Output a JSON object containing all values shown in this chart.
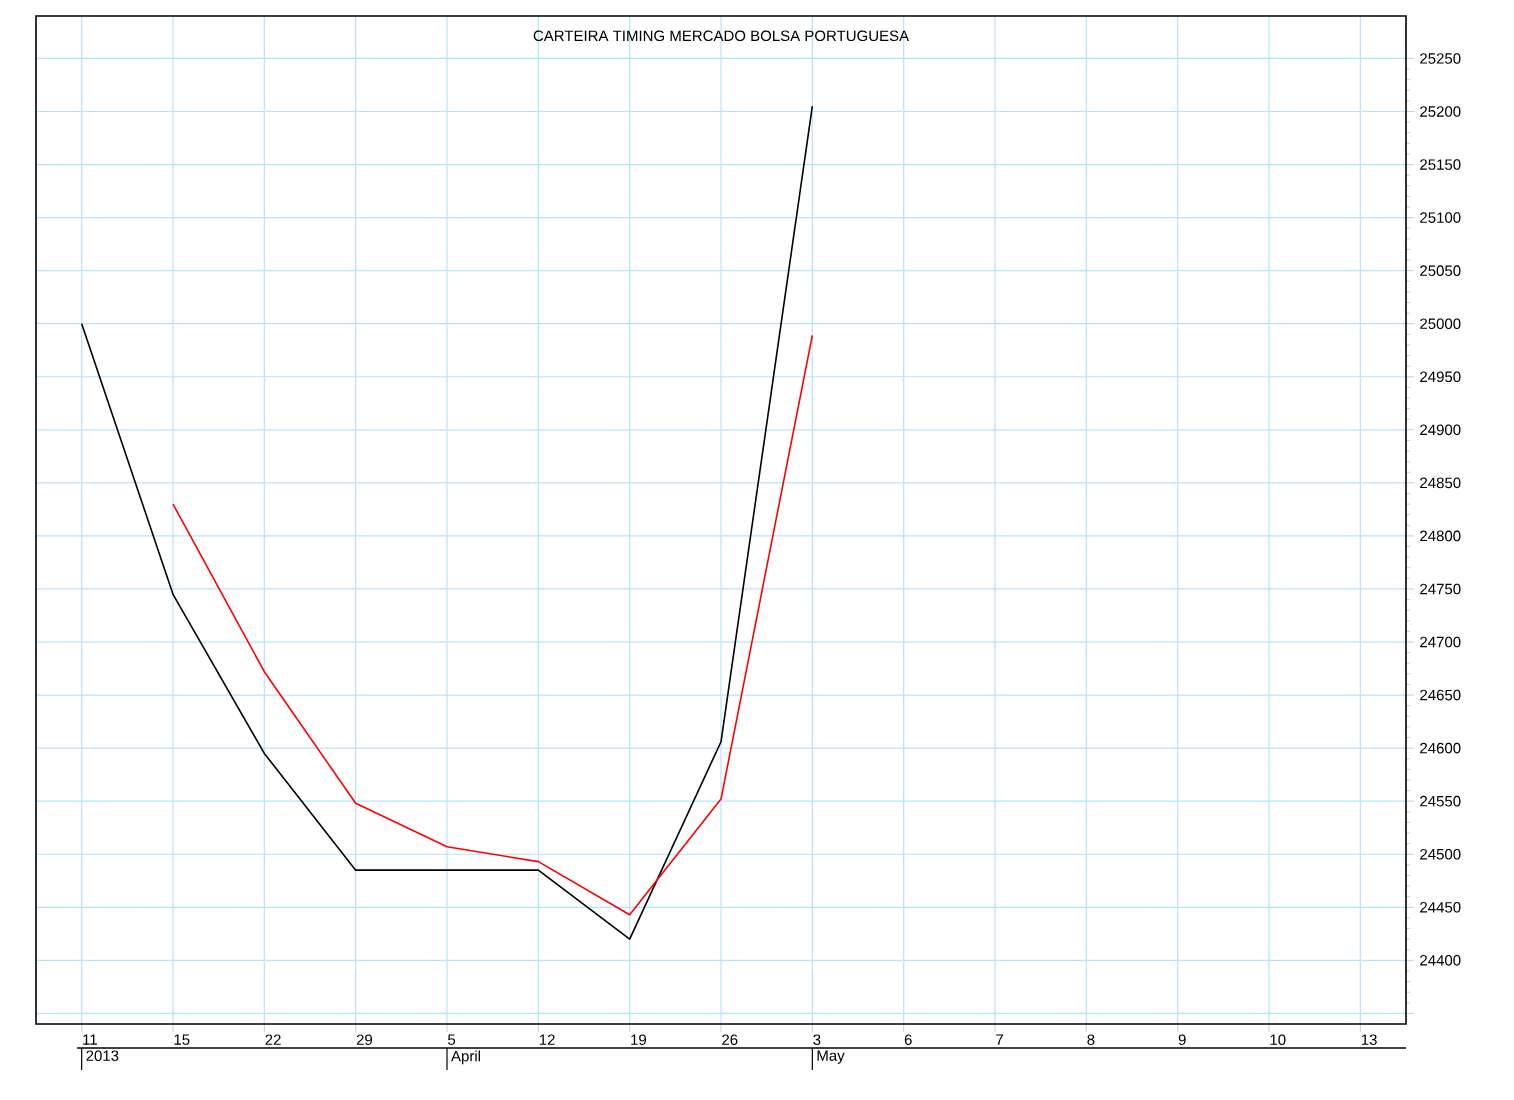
{
  "chart_data": {
    "type": "line",
    "title": "CARTEIRA TIMING MERCADO BOLSA PORTUGUESA",
    "categories": [
      "11",
      "15",
      "22",
      "29",
      "5",
      "12",
      "19",
      "26",
      "3",
      "6",
      "7",
      "8",
      "9",
      "10",
      "13"
    ],
    "series": [
      {
        "color": "#000000",
        "values": [
          25000,
          24745,
          24595,
          24485,
          24485,
          24485,
          24420,
          24606,
          25205,
          null,
          null,
          null,
          null,
          null,
          null
        ]
      },
      {
        "color": "#ff0000",
        "values": [
          null,
          24830,
          24672,
          24548,
          24507,
          24493,
          24443,
          24552,
          24989,
          null,
          null,
          null,
          null,
          null,
          null
        ]
      }
    ],
    "ylim": [
      24340,
      25290
    ],
    "yticks": [
      {
        "value": 24350,
        "label": null
      },
      24400,
      24450,
      24500,
      24550,
      24600,
      24650,
      24700,
      24750,
      24800,
      24850,
      24900,
      24950,
      25000,
      25050,
      25100,
      25150,
      25200,
      25250
    ],
    "grid": true,
    "marker": "none",
    "line_style": "solid",
    "annotations": [
      "2013",
      "April",
      "May"
    ]
  }
}
